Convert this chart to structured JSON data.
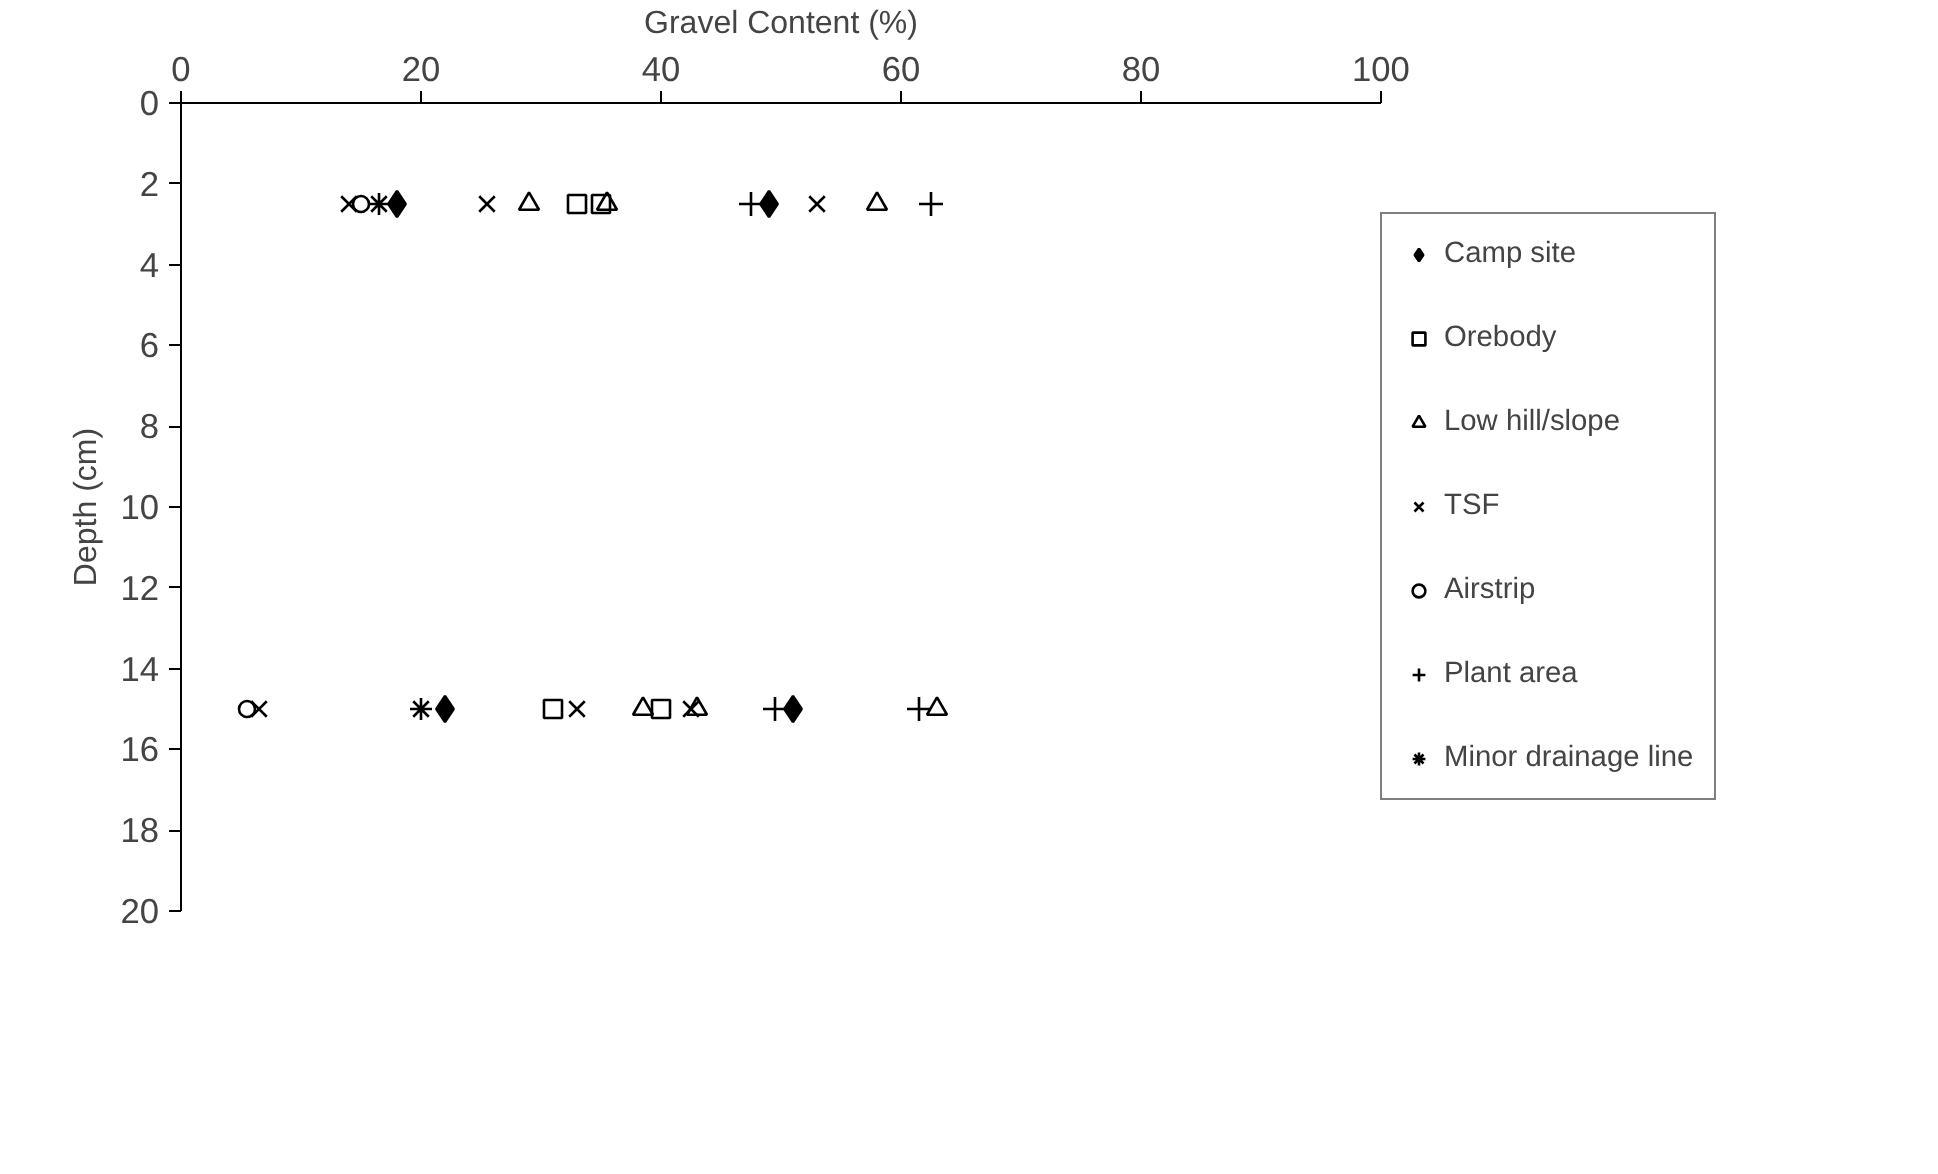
{
  "chart_data": {
    "type": "scatter",
    "xlabel": "Gravel Content (%)",
    "ylabel": "Depth (cm)",
    "xlim": [
      0,
      100
    ],
    "xticks": [
      0,
      20,
      40,
      60,
      80,
      100
    ],
    "ylim": [
      20,
      0
    ],
    "yticks": [
      0,
      2,
      4,
      6,
      8,
      10,
      12,
      14,
      16,
      18,
      20
    ],
    "grid": false,
    "legend": "right",
    "series": [
      {
        "name": "Camp site",
        "color": "#000000",
        "marker": "diamond",
        "x": [
          18,
          49,
          22,
          51
        ],
        "values": [
          2.5,
          2.5,
          15,
          15
        ]
      },
      {
        "name": "Orebody",
        "color": "#000000",
        "marker": "square",
        "x": [
          33,
          35,
          31,
          40
        ],
        "values": [
          2.5,
          2.5,
          15,
          15
        ]
      },
      {
        "name": "Low hill/slope",
        "color": "#000000",
        "marker": "triangle",
        "x": [
          29,
          35.5,
          58,
          38.5,
          43,
          63
        ],
        "values": [
          2.5,
          2.5,
          2.5,
          15,
          15,
          15
        ]
      },
      {
        "name": "TSF",
        "color": "#000000",
        "marker": "x",
        "x": [
          14,
          25.5,
          53,
          6.5,
          33,
          42.5
        ],
        "values": [
          2.5,
          2.5,
          2.5,
          15,
          15,
          15
        ]
      },
      {
        "name": "Airstrip",
        "color": "#000000",
        "marker": "circle",
        "x": [
          15,
          5.5
        ],
        "values": [
          2.5,
          15
        ]
      },
      {
        "name": "Plant area",
        "color": "#000000",
        "marker": "cross",
        "x": [
          47.5,
          62.5,
          49.5,
          61.5
        ],
        "values": [
          2.5,
          2.5,
          15,
          15
        ]
      },
      {
        "name": "Minor drainage line",
        "color": "#000000",
        "x": [
          16.5,
          20
        ],
        "values": [
          2.5,
          15
        ]
      }
    ]
  }
}
